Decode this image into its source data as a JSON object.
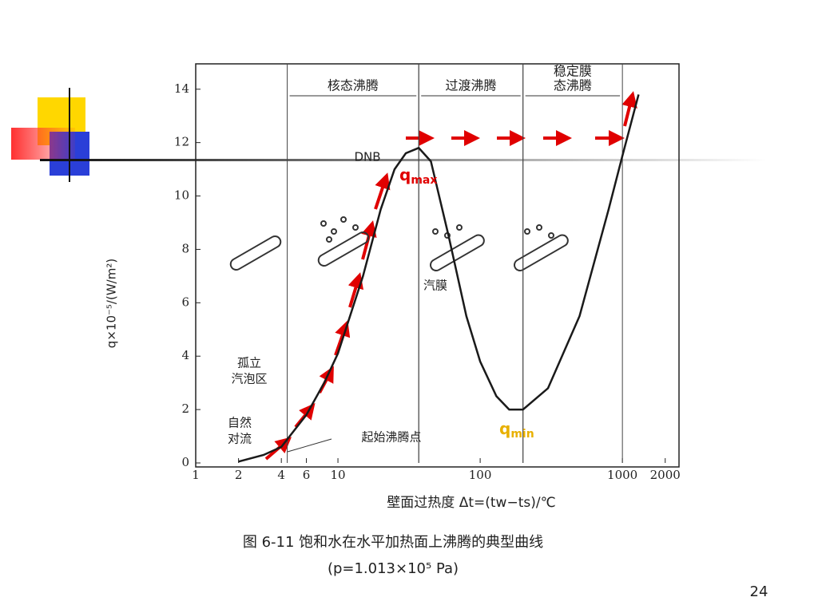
{
  "chart_data": {
    "type": "line",
    "x_scale": "log",
    "x": [
      2,
      3,
      4,
      6,
      8,
      10,
      15,
      20,
      25,
      30,
      37,
      45,
      60,
      80,
      100,
      130,
      160,
      200,
      300,
      500,
      800,
      1000,
      1300
    ],
    "values": [
      0.05,
      0.3,
      0.6,
      1.8,
      3,
      4.1,
      7,
      9.5,
      11,
      11.6,
      11.8,
      11.3,
      8.5,
      5.5,
      3.8,
      2.5,
      2,
      2,
      2.8,
      5.5,
      9.5,
      11.5,
      13.8
    ],
    "color": "#1a1a1a",
    "xlim": [
      1,
      2500
    ],
    "ylim": [
      0,
      14.8
    ],
    "xticks": [
      1,
      2,
      4,
      6,
      10,
      100,
      1000,
      2000
    ],
    "yticks": [
      0,
      2,
      4,
      6,
      8,
      10,
      12,
      14
    ],
    "ylabel": "q×10⁻⁵/(W/m²)",
    "xlabel": "壁面过热度 Δt=(tw−ts)/℃",
    "regions": [
      {
        "label": [
          "核态沸腾"
        ],
        "from": 4.4,
        "to": 37
      },
      {
        "label": [
          "过渡沸腾"
        ],
        "from": 37,
        "to": 200
      },
      {
        "label": [
          "稳定膜",
          "态沸腾"
        ],
        "from": 200,
        "to": 1000
      }
    ],
    "dnb": "DNB",
    "q_max": {
      "base": "q",
      "sub": "max"
    },
    "q_min": {
      "base": "q",
      "sub": "min"
    },
    "vapor_film": "汽膜",
    "isolated": [
      "孤立",
      "汽泡区"
    ],
    "natural": [
      "自然",
      "对流"
    ],
    "onset": "起始沸腾点",
    "caption": [
      "图 6-11  饱和水在水平加热面上沸腾的典型曲线",
      "(p=1.013×10⁵ Pa)"
    ]
  },
  "page_number": "24"
}
